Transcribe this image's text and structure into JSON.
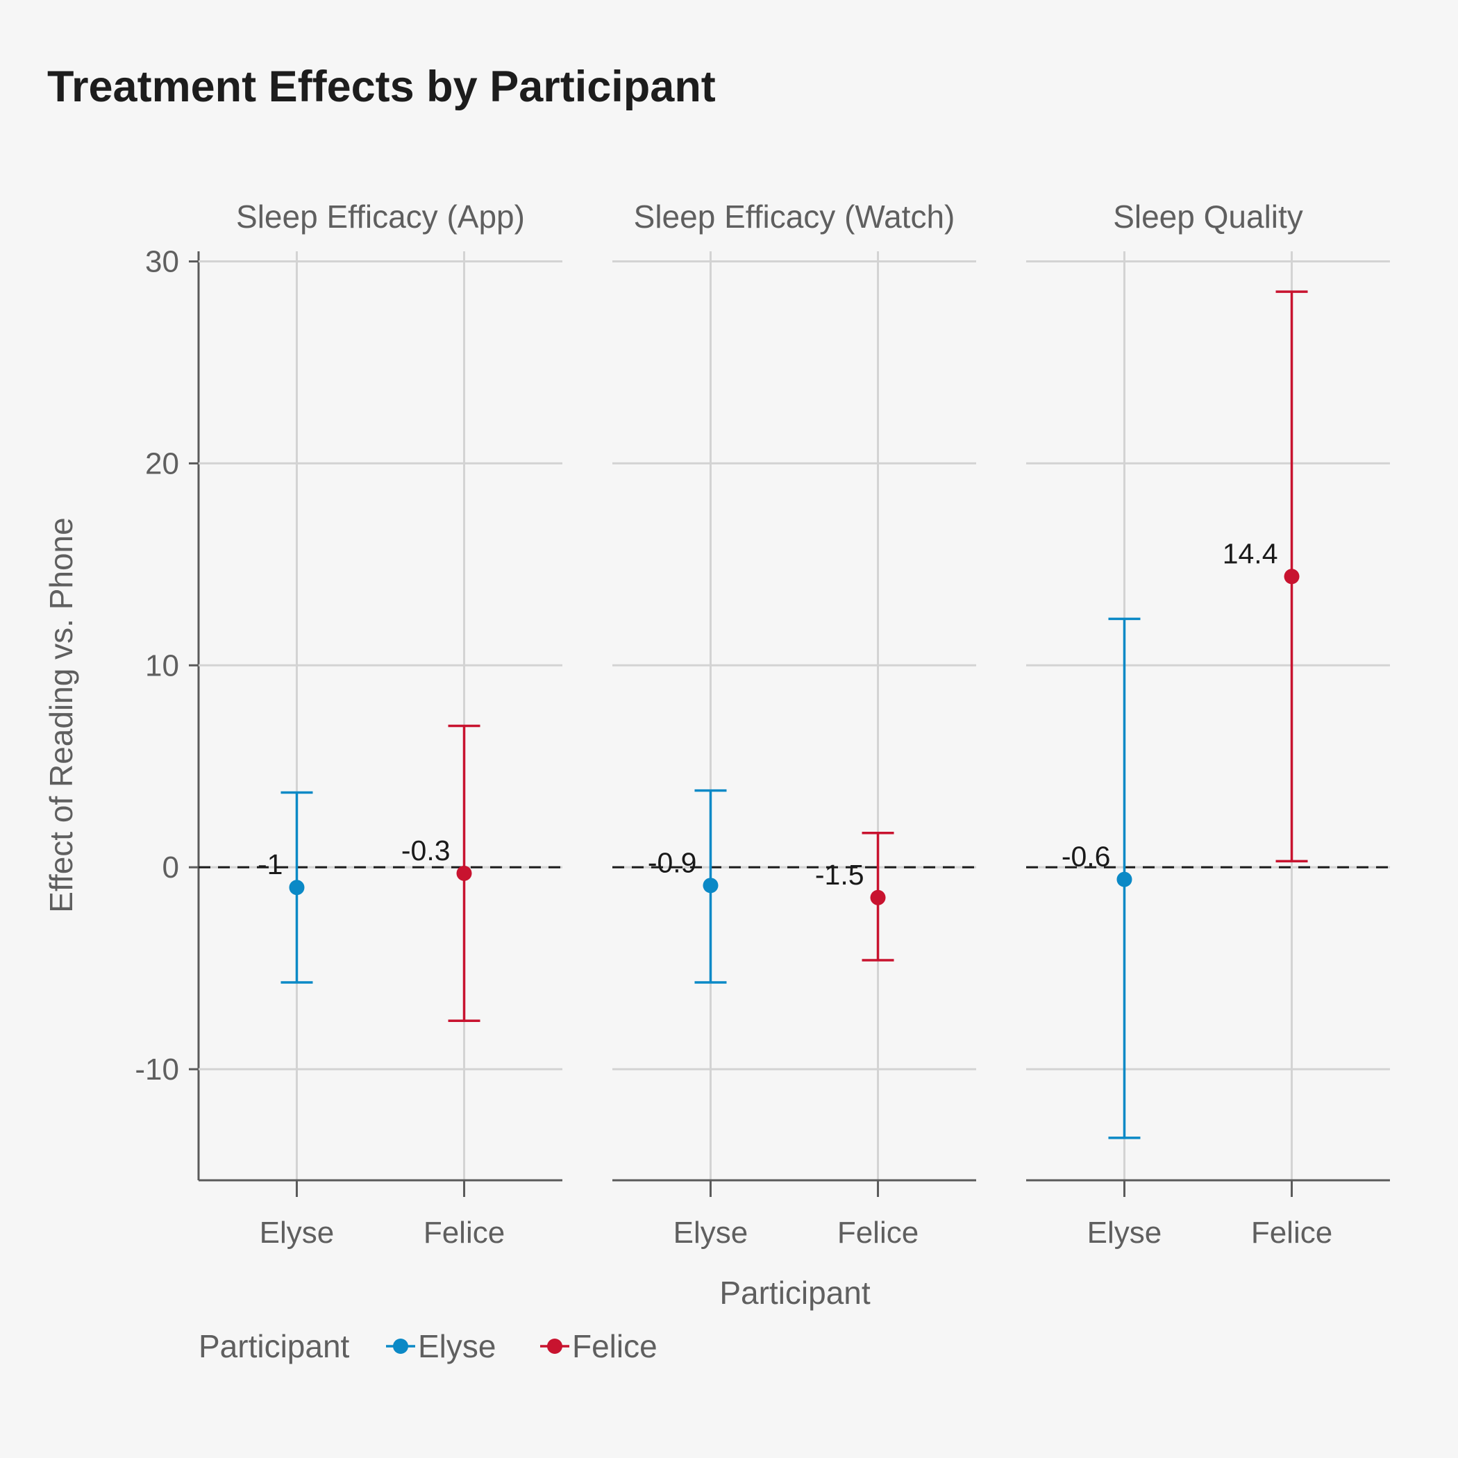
{
  "chart_data": {
    "type": "errorbar",
    "title": "Treatment Effects by Participant",
    "xlabel": "Participant",
    "ylabel": "Effect of Reading vs. Phone",
    "ylim": [
      -15.5,
      30.5
    ],
    "yticks": [
      -10,
      0,
      10,
      20,
      30
    ],
    "categories": [
      "Elyse",
      "Felice"
    ],
    "reference_line": 0,
    "grid": true,
    "colors": {
      "Elyse": "#0b89c6",
      "Felice": "#c8132f"
    },
    "legend": {
      "title": "Participant",
      "placement": "bottom-left",
      "entries": [
        "Elyse",
        "Felice"
      ]
    },
    "panels": [
      {
        "name": "Sleep Efficacy (App)",
        "points": [
          {
            "participant": "Elyse",
            "estimate": -1.0,
            "lower": -5.7,
            "upper": 3.7,
            "label": "-1"
          },
          {
            "participant": "Felice",
            "estimate": -0.3,
            "lower": -7.6,
            "upper": 7.0,
            "label": "-0.3"
          }
        ]
      },
      {
        "name": "Sleep Efficacy (Watch)",
        "points": [
          {
            "participant": "Elyse",
            "estimate": -0.9,
            "lower": -5.7,
            "upper": 3.8,
            "label": "-0.9"
          },
          {
            "participant": "Felice",
            "estimate": -1.5,
            "lower": -4.6,
            "upper": 1.7,
            "label": "-1.5"
          }
        ]
      },
      {
        "name": "Sleep Quality",
        "points": [
          {
            "participant": "Elyse",
            "estimate": -0.6,
            "lower": -13.4,
            "upper": 12.3,
            "label": "-0.6"
          },
          {
            "participant": "Felice",
            "estimate": 14.4,
            "lower": 0.3,
            "upper": 28.5,
            "label": "14.4"
          }
        ]
      }
    ]
  }
}
